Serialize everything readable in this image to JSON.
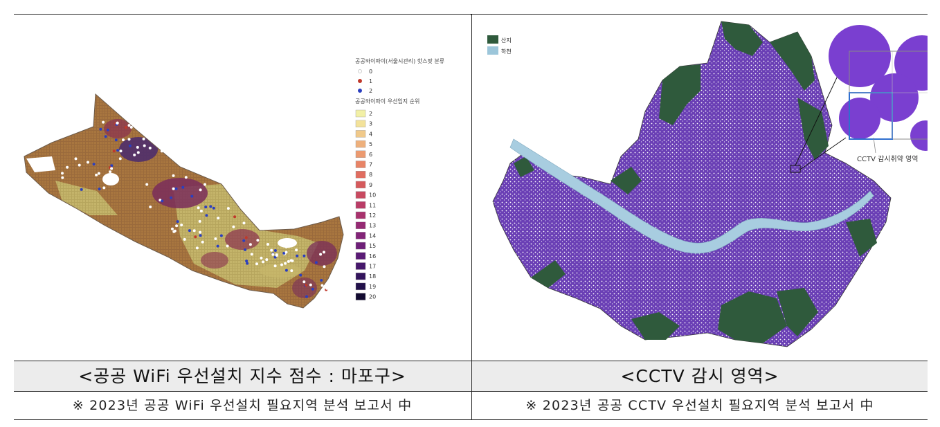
{
  "left_panel": {
    "legend_hotspot": {
      "title": "공공와이파이(서울시관리) 핫스팟 분류",
      "items": [
        {
          "label": "0",
          "color": "#ffffff"
        },
        {
          "label": "1",
          "color": "#c0392b"
        },
        {
          "label": "2",
          "color": "#2b3fbf"
        }
      ]
    },
    "legend_rank": {
      "title": "공공와이파이 우선입지 순위",
      "items": [
        {
          "label": "2",
          "color": "#f2f0a6"
        },
        {
          "label": "3",
          "color": "#f3e29a"
        },
        {
          "label": "4",
          "color": "#f0c98a"
        },
        {
          "label": "5",
          "color": "#eeb07c"
        },
        {
          "label": "6",
          "color": "#ec9a70"
        },
        {
          "label": "7",
          "color": "#e88466"
        },
        {
          "label": "8",
          "color": "#e06d60"
        },
        {
          "label": "9",
          "color": "#d55a5c"
        },
        {
          "label": "10",
          "color": "#c84a60"
        },
        {
          "label": "11",
          "color": "#b93c66"
        },
        {
          "label": "12",
          "color": "#a8326d"
        },
        {
          "label": "13",
          "color": "#952a73"
        },
        {
          "label": "14",
          "color": "#822477"
        },
        {
          "label": "15",
          "color": "#6e1f78"
        },
        {
          "label": "16",
          "color": "#5a1b75"
        },
        {
          "label": "17",
          "color": "#46186b"
        },
        {
          "label": "18",
          "color": "#33145c"
        },
        {
          "label": "19",
          "color": "#22104a"
        },
        {
          "label": "20",
          "color": "#120a30"
        }
      ]
    },
    "caption": "<공공 WiFi 우선설치 지수 점수 : 마포구>",
    "source": "※ 2023년 공공 WiFi 우선설치 필요지역 분석 보고서 中"
  },
  "right_panel": {
    "legend": [
      {
        "label": "산지",
        "color": "#2f5a3c"
      },
      {
        "label": "하천",
        "color": "#9cc6da"
      }
    ],
    "inset_label": "CCTV 감시취약 영역",
    "colors": {
      "coverage": "#6a3fb5",
      "river": "#a8cde0",
      "mountain": "#2f5a3c"
    },
    "caption": "<CCTV 감시 영역>",
    "source": "※ 2023년 공공 CCTV 우선설치 필요지역 분석 보고서 中"
  }
}
